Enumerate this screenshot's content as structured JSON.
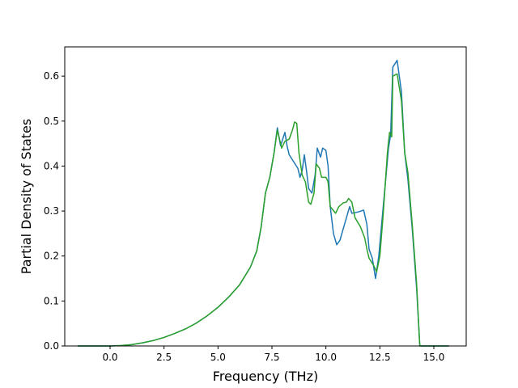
{
  "chart_data": {
    "type": "line",
    "title": "",
    "xlabel": "Frequency (THz)",
    "ylabel": "Partial Density of States",
    "xlim": [
      -2.1,
      16.5
    ],
    "ylim": [
      0,
      0.665
    ],
    "xticks": [
      0.0,
      2.5,
      5.0,
      7.5,
      10.0,
      12.5,
      15.0
    ],
    "xtick_labels": [
      "0.0",
      "2.5",
      "5.0",
      "7.5",
      "10.0",
      "12.5",
      "15.0"
    ],
    "yticks": [
      0.0,
      0.1,
      0.2,
      0.3,
      0.4,
      0.5,
      0.6
    ],
    "ytick_labels": [
      "0.0",
      "0.1",
      "0.2",
      "0.3",
      "0.4",
      "0.5",
      "0.6"
    ],
    "grid": false,
    "legend": "none",
    "series": [
      {
        "color": "#1f77b4",
        "points": [
          [
            -1.5,
            0.0
          ],
          [
            0.0,
            0.0
          ],
          [
            0.5,
            0.001
          ],
          [
            1.0,
            0.003
          ],
          [
            1.5,
            0.007
          ],
          [
            2.0,
            0.012
          ],
          [
            2.5,
            0.019
          ],
          [
            3.0,
            0.028
          ],
          [
            3.5,
            0.038
          ],
          [
            4.0,
            0.051
          ],
          [
            4.5,
            0.067
          ],
          [
            5.0,
            0.086
          ],
          [
            5.5,
            0.109
          ],
          [
            6.0,
            0.136
          ],
          [
            6.5,
            0.175
          ],
          [
            6.8,
            0.212
          ],
          [
            7.0,
            0.265
          ],
          [
            7.2,
            0.34
          ],
          [
            7.4,
            0.375
          ],
          [
            7.6,
            0.43
          ],
          [
            7.75,
            0.485
          ],
          [
            7.9,
            0.445
          ],
          [
            8.1,
            0.475
          ],
          [
            8.2,
            0.445
          ],
          [
            8.3,
            0.425
          ],
          [
            8.5,
            0.41
          ],
          [
            8.7,
            0.395
          ],
          [
            8.8,
            0.375
          ],
          [
            8.9,
            0.39
          ],
          [
            9.0,
            0.425
          ],
          [
            9.1,
            0.39
          ],
          [
            9.2,
            0.35
          ],
          [
            9.35,
            0.34
          ],
          [
            9.5,
            0.38
          ],
          [
            9.6,
            0.44
          ],
          [
            9.75,
            0.42
          ],
          [
            9.85,
            0.44
          ],
          [
            10.0,
            0.435
          ],
          [
            10.1,
            0.4
          ],
          [
            10.2,
            0.31
          ],
          [
            10.35,
            0.25
          ],
          [
            10.5,
            0.225
          ],
          [
            10.65,
            0.235
          ],
          [
            10.8,
            0.26
          ],
          [
            10.95,
            0.285
          ],
          [
            11.1,
            0.31
          ],
          [
            11.2,
            0.295
          ],
          [
            11.5,
            0.298
          ],
          [
            11.75,
            0.302
          ],
          [
            11.9,
            0.27
          ],
          [
            12.0,
            0.215
          ],
          [
            12.15,
            0.195
          ],
          [
            12.3,
            0.15
          ],
          [
            12.45,
            0.2
          ],
          [
            12.6,
            0.28
          ],
          [
            12.75,
            0.36
          ],
          [
            12.9,
            0.44
          ],
          [
            13.0,
            0.47
          ],
          [
            13.1,
            0.62
          ],
          [
            13.3,
            0.635
          ],
          [
            13.5,
            0.565
          ],
          [
            13.65,
            0.43
          ],
          [
            13.8,
            0.37
          ],
          [
            14.0,
            0.26
          ],
          [
            14.2,
            0.13
          ],
          [
            14.35,
            0.0
          ],
          [
            15.7,
            0.0
          ]
        ]
      },
      {
        "color": "#2ca02c",
        "points": [
          [
            -1.5,
            0.0
          ],
          [
            0.0,
            0.0
          ],
          [
            0.5,
            0.001
          ],
          [
            1.0,
            0.003
          ],
          [
            1.5,
            0.007
          ],
          [
            2.0,
            0.012
          ],
          [
            2.5,
            0.019
          ],
          [
            3.0,
            0.028
          ],
          [
            3.5,
            0.038
          ],
          [
            4.0,
            0.051
          ],
          [
            4.5,
            0.067
          ],
          [
            5.0,
            0.086
          ],
          [
            5.5,
            0.109
          ],
          [
            6.0,
            0.136
          ],
          [
            6.5,
            0.175
          ],
          [
            6.8,
            0.212
          ],
          [
            7.0,
            0.265
          ],
          [
            7.2,
            0.34
          ],
          [
            7.4,
            0.375
          ],
          [
            7.6,
            0.43
          ],
          [
            7.75,
            0.48
          ],
          [
            7.95,
            0.44
          ],
          [
            8.1,
            0.455
          ],
          [
            8.3,
            0.46
          ],
          [
            8.45,
            0.48
          ],
          [
            8.55,
            0.498
          ],
          [
            8.65,
            0.495
          ],
          [
            8.75,
            0.43
          ],
          [
            8.9,
            0.38
          ],
          [
            9.05,
            0.365
          ],
          [
            9.2,
            0.32
          ],
          [
            9.3,
            0.315
          ],
          [
            9.45,
            0.34
          ],
          [
            9.55,
            0.405
          ],
          [
            9.7,
            0.395
          ],
          [
            9.8,
            0.375
          ],
          [
            10.0,
            0.375
          ],
          [
            10.1,
            0.365
          ],
          [
            10.2,
            0.31
          ],
          [
            10.45,
            0.295
          ],
          [
            10.6,
            0.31
          ],
          [
            10.8,
            0.318
          ],
          [
            10.95,
            0.32
          ],
          [
            11.05,
            0.328
          ],
          [
            11.2,
            0.32
          ],
          [
            11.35,
            0.285
          ],
          [
            11.6,
            0.265
          ],
          [
            11.8,
            0.24
          ],
          [
            11.9,
            0.215
          ],
          [
            12.0,
            0.195
          ],
          [
            12.2,
            0.18
          ],
          [
            12.35,
            0.165
          ],
          [
            12.5,
            0.2
          ],
          [
            12.65,
            0.29
          ],
          [
            12.85,
            0.43
          ],
          [
            12.95,
            0.475
          ],
          [
            13.05,
            0.465
          ],
          [
            13.1,
            0.6
          ],
          [
            13.3,
            0.605
          ],
          [
            13.5,
            0.545
          ],
          [
            13.65,
            0.43
          ],
          [
            13.8,
            0.385
          ],
          [
            14.0,
            0.27
          ],
          [
            14.2,
            0.14
          ],
          [
            14.35,
            0.0
          ],
          [
            15.7,
            0.0
          ]
        ]
      }
    ]
  }
}
